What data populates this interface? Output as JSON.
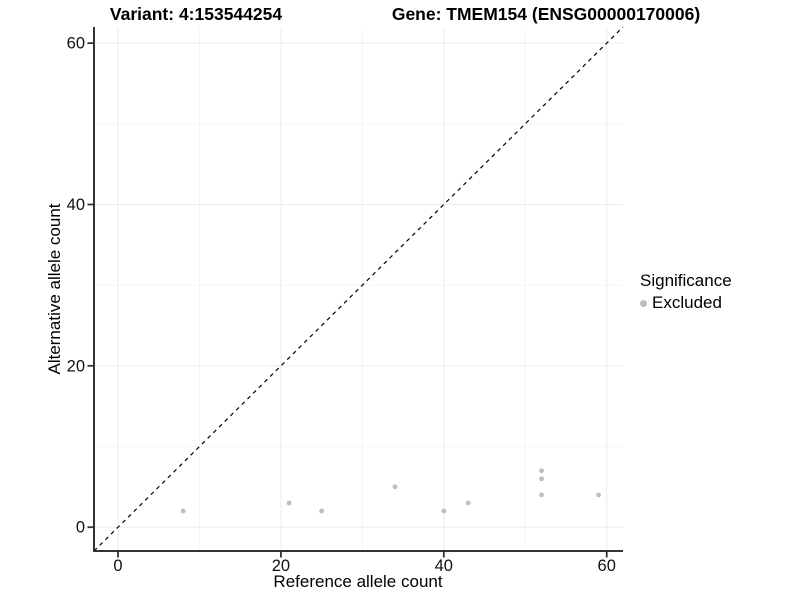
{
  "colors": {
    "background": "#FFFFFF",
    "grid_major": "#EBEBEB",
    "grid_minor": "#F5F5F5",
    "axis_line": "#333333",
    "tick_text": "#111111",
    "point": "#BEBEBE",
    "identity_line": "#000000"
  },
  "chart_data": {
    "type": "scatter",
    "title_left": "Variant: 4:153544254",
    "title_right": "Gene: TMEM154 (ENSG00000170006)",
    "xlabel": "Reference allele count",
    "ylabel": "Alternative allele count",
    "xlim": [
      -2.95,
      62
    ],
    "ylim": [
      -2.95,
      62
    ],
    "x_ticks": [
      0,
      20,
      40,
      60
    ],
    "y_ticks": [
      0,
      20,
      40,
      60
    ],
    "x_minor_ticks": [
      10,
      30,
      50
    ],
    "y_minor_ticks": [
      10,
      30,
      50
    ],
    "grid": "on",
    "identity_line": {
      "style": "dashed",
      "equation": "y = x"
    },
    "series": [
      {
        "name": "Excluded",
        "color": "#BEBEBE",
        "points": [
          [
            8,
            2
          ],
          [
            21,
            3
          ],
          [
            25,
            2
          ],
          [
            34,
            5
          ],
          [
            40,
            2
          ],
          [
            43,
            3
          ],
          [
            52,
            4
          ],
          [
            52,
            6
          ],
          [
            52,
            7
          ],
          [
            59,
            4
          ]
        ]
      }
    ],
    "legend": {
      "title": "Significance",
      "position": "right",
      "items": [
        {
          "label": "Excluded",
          "color": "#BEBEBE"
        }
      ]
    }
  }
}
